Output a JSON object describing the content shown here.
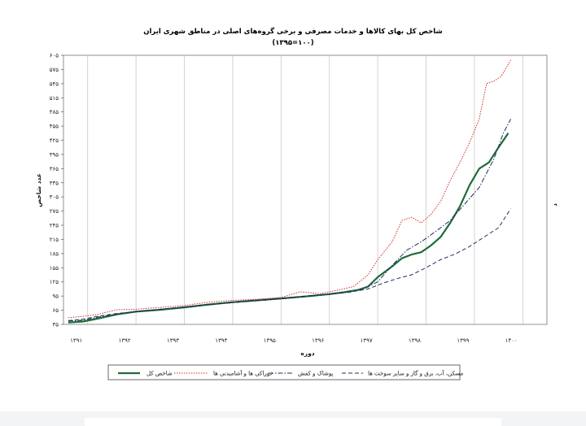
{
  "chart_data": {
    "type": "line",
    "title": "شاخص کل بهای کالاها و خدمات مصرفی و برخی گروه‌های اصلی در مناطق شهری ایران",
    "subtitle": "(۱۰۰=۱۳۹۵)",
    "xlabel": "دوره",
    "ylabel": "عدد شاخص",
    "right_mark": "د",
    "x_ticks": [
      "۱۳۹۱",
      "۱۳۹۲",
      "۱۳۹۳",
      "۱۳۹۴",
      "۱۳۹۵",
      "۱۳۹۶",
      "۱۳۹۷",
      "۱۳۹۸",
      "۱۳۹۹",
      "۱۴۰۰"
    ],
    "y_ticks": [
      "۳۵",
      "۶۵",
      "۹۵",
      "۱۲۵",
      "۱۵۵",
      "۱۸۵",
      "۲۱۵",
      "۲۴۵",
      "۲۷۵",
      "۳۰۵",
      "۳۳۵",
      "۳۶۵",
      "۳۹۵",
      "۴۲۵",
      "۴۵۵",
      "۴۸۵",
      "۵۱۵",
      "۵۴۵",
      "۵۷۵",
      "۶۰۵"
    ],
    "y_tick_values": [
      35,
      65,
      95,
      125,
      155,
      185,
      215,
      245,
      275,
      305,
      335,
      365,
      395,
      425,
      455,
      485,
      515,
      545,
      575,
      605
    ],
    "ylim": [
      35,
      605
    ],
    "xlim": [
      1390.5,
      1400.5
    ],
    "grid": true,
    "legend_position": "bottom",
    "series": [
      {
        "name": "شاخص کل",
        "color": "#1f6b3a",
        "style": "solid",
        "points": [
          [
            1390.6,
            39
          ],
          [
            1390.9,
            41
          ],
          [
            1391.2,
            47
          ],
          [
            1391.6,
            56
          ],
          [
            1392.0,
            62
          ],
          [
            1392.5,
            66
          ],
          [
            1393.0,
            71
          ],
          [
            1393.5,
            77
          ],
          [
            1394.0,
            82
          ],
          [
            1394.5,
            86
          ],
          [
            1395.0,
            90
          ],
          [
            1395.5,
            94
          ],
          [
            1396.0,
            99
          ],
          [
            1396.3,
            103
          ],
          [
            1396.6,
            108
          ],
          [
            1396.8,
            115
          ],
          [
            1397.0,
            135
          ],
          [
            1397.3,
            158
          ],
          [
            1397.5,
            175
          ],
          [
            1397.7,
            183
          ],
          [
            1397.9,
            188
          ],
          [
            1398.1,
            202
          ],
          [
            1398.3,
            220
          ],
          [
            1398.5,
            250
          ],
          [
            1398.7,
            285
          ],
          [
            1398.9,
            330
          ],
          [
            1399.1,
            365
          ],
          [
            1399.3,
            378
          ],
          [
            1399.5,
            410
          ],
          [
            1399.7,
            440
          ]
        ]
      },
      {
        "name": "خوراکی ها و آشامیدنی ها",
        "color": "#d1302a",
        "style": "dotted",
        "points": [
          [
            1390.6,
            49
          ],
          [
            1390.9,
            52
          ],
          [
            1391.2,
            56
          ],
          [
            1391.6,
            66
          ],
          [
            1392.0,
            67
          ],
          [
            1392.5,
            71
          ],
          [
            1393.0,
            75
          ],
          [
            1393.5,
            82
          ],
          [
            1394.0,
            86
          ],
          [
            1394.5,
            88
          ],
          [
            1395.0,
            92
          ],
          [
            1395.4,
            104
          ],
          [
            1395.8,
            100
          ],
          [
            1396.2,
            108
          ],
          [
            1396.5,
            115
          ],
          [
            1396.8,
            140
          ],
          [
            1397.0,
            172
          ],
          [
            1397.3,
            210
          ],
          [
            1397.5,
            255
          ],
          [
            1397.7,
            262
          ],
          [
            1397.9,
            250
          ],
          [
            1398.1,
            268
          ],
          [
            1398.3,
            295
          ],
          [
            1398.5,
            340
          ],
          [
            1398.7,
            378
          ],
          [
            1398.9,
            420
          ],
          [
            1399.1,
            470
          ],
          [
            1399.25,
            545
          ],
          [
            1399.4,
            550
          ],
          [
            1399.55,
            560
          ],
          [
            1399.75,
            595
          ]
        ]
      },
      {
        "name": "پوشاک و کفش",
        "color": "#1e2f5a",
        "style": "dashdot",
        "points": [
          [
            1390.6,
            42
          ],
          [
            1390.9,
            44
          ],
          [
            1391.2,
            50
          ],
          [
            1391.6,
            57
          ],
          [
            1392.0,
            62
          ],
          [
            1392.5,
            66
          ],
          [
            1393.0,
            72
          ],
          [
            1393.5,
            77
          ],
          [
            1394.0,
            81
          ],
          [
            1394.5,
            85
          ],
          [
            1395.0,
            89
          ],
          [
            1395.5,
            94
          ],
          [
            1396.0,
            99
          ],
          [
            1396.4,
            103
          ],
          [
            1396.7,
            110
          ],
          [
            1397.0,
            125
          ],
          [
            1397.3,
            160
          ],
          [
            1397.6,
            192
          ],
          [
            1397.9,
            210
          ],
          [
            1398.2,
            232
          ],
          [
            1398.5,
            255
          ],
          [
            1398.8,
            290
          ],
          [
            1399.1,
            325
          ],
          [
            1399.4,
            385
          ],
          [
            1399.6,
            440
          ],
          [
            1399.75,
            470
          ]
        ]
      },
      {
        "name": "مسکن، آب، برق و گاز و سایر سوخت ها",
        "color": "#1e2f5a",
        "style": "dashed",
        "points": [
          [
            1390.6,
            43
          ],
          [
            1390.9,
            46
          ],
          [
            1391.2,
            52
          ],
          [
            1391.6,
            58
          ],
          [
            1392.0,
            62
          ],
          [
            1392.5,
            67
          ],
          [
            1393.0,
            72
          ],
          [
            1393.5,
            77
          ],
          [
            1394.0,
            82
          ],
          [
            1394.5,
            86
          ],
          [
            1395.0,
            90
          ],
          [
            1395.5,
            95
          ],
          [
            1396.0,
            99
          ],
          [
            1396.4,
            103
          ],
          [
            1396.8,
            110
          ],
          [
            1397.1,
            122
          ],
          [
            1397.4,
            132
          ],
          [
            1397.7,
            140
          ],
          [
            1398.0,
            155
          ],
          [
            1398.3,
            172
          ],
          [
            1398.6,
            184
          ],
          [
            1398.9,
            200
          ],
          [
            1399.2,
            220
          ],
          [
            1399.5,
            240
          ],
          [
            1399.75,
            280
          ]
        ]
      }
    ]
  }
}
